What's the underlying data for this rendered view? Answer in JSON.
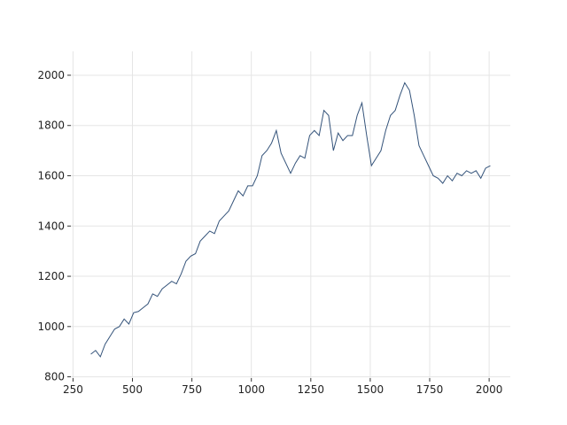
{
  "chart_data": {
    "type": "line",
    "x": [
      325,
      345,
      365,
      385,
      405,
      425,
      445,
      465,
      485,
      505,
      525,
      545,
      565,
      585,
      605,
      625,
      645,
      665,
      685,
      705,
      725,
      745,
      765,
      785,
      805,
      825,
      845,
      865,
      885,
      905,
      925,
      945,
      965,
      985,
      1005,
      1025,
      1045,
      1065,
      1085,
      1105,
      1125,
      1145,
      1165,
      1185,
      1205,
      1225,
      1245,
      1265,
      1285,
      1305,
      1325,
      1345,
      1365,
      1385,
      1405,
      1425,
      1445,
      1465,
      1485,
      1505,
      1525,
      1545,
      1565,
      1585,
      1605,
      1625,
      1645,
      1665,
      1685,
      1705,
      1725,
      1745,
      1765,
      1785,
      1805,
      1825,
      1845,
      1865,
      1885,
      1905,
      1925,
      1945,
      1965,
      1985,
      2005
    ],
    "series": [
      {
        "color": "#34537a",
        "values": [
          890,
          905,
          880,
          930,
          960,
          990,
          1000,
          1030,
          1010,
          1055,
          1060,
          1075,
          1090,
          1130,
          1120,
          1150,
          1165,
          1180,
          1170,
          1210,
          1260,
          1280,
          1290,
          1340,
          1360,
          1380,
          1370,
          1420,
          1440,
          1460,
          1500,
          1540,
          1520,
          1560,
          1560,
          1600,
          1680,
          1700,
          1730,
          1780,
          1690,
          1650,
          1610,
          1650,
          1680,
          1670,
          1760,
          1780,
          1760,
          1860,
          1840,
          1700,
          1770,
          1740,
          1760,
          1760,
          1840,
          1890,
          1760,
          1640,
          1670,
          1700,
          1780,
          1840,
          1860,
          1920,
          1970,
          1940,
          1840,
          1720,
          1680,
          1640,
          1600,
          1590,
          1570,
          1600,
          1580,
          1610,
          1600,
          1620,
          1610,
          1620,
          1590,
          1630,
          1640
        ]
      }
    ],
    "xlim": [
      241,
      2089
    ],
    "ylim": [
      795,
      2095
    ],
    "xticks": [
      250,
      500,
      750,
      1000,
      1250,
      1500,
      1750,
      2000
    ],
    "yticks": [
      800,
      1000,
      1200,
      1400,
      1600,
      1800,
      2000
    ],
    "grid": true
  }
}
